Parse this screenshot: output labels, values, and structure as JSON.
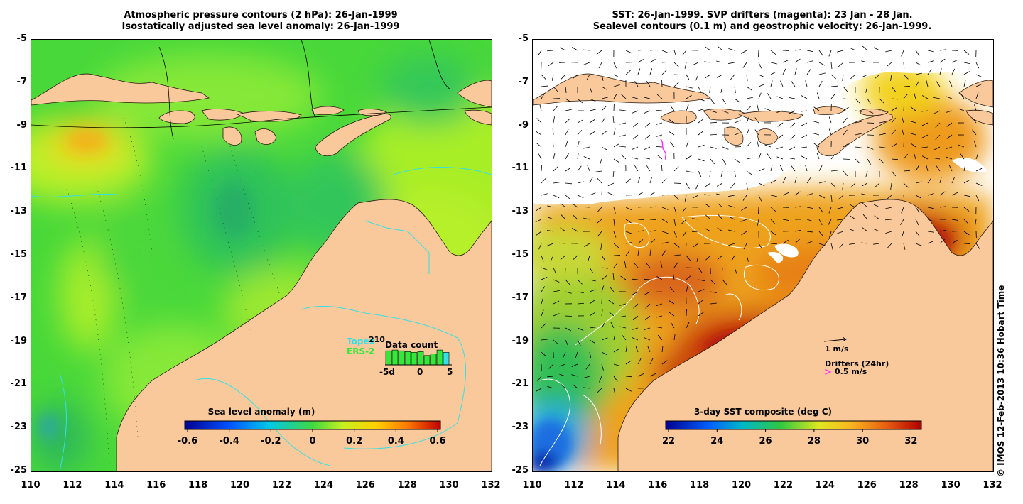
{
  "left_panel": {
    "title_line1": "Atmospheric pressure contours (2 hPa): 26-Jan-1999",
    "title_line2": "Isostatically adjusted sea level anomaly: 26-Jan-1999",
    "colorbar_label": "Sea level anomaly (m)",
    "colorbar_ticks": [
      "-0.6",
      "-0.4",
      "-0.2",
      "0",
      "0.2",
      "0.4",
      "0.6"
    ],
    "inset": {
      "label_topex": "Topex",
      "label_ers2": "ERS-2",
      "label_count": "Data count",
      "count_value": "210",
      "axis_ticks": [
        "-5d",
        "0",
        "5"
      ],
      "bars": [
        0.9,
        0.95,
        0.9,
        0.85,
        0.8,
        0.85,
        0.6,
        0.7,
        0.95,
        0.8
      ]
    }
  },
  "right_panel": {
    "title_line1": "SST: 26-Jan-1999. SVP drifters (magenta): 23 Jan - 28 Jan.",
    "title_line2": "Sealevel contours (0.1 m) and geostrophic velocity: 26-Jan-1999.",
    "colorbar_label": "3-day SST composite (deg C)",
    "colorbar_ticks": [
      "22",
      "24",
      "26",
      "28",
      "30",
      "32"
    ],
    "vector_legend": "1 m/s",
    "drifter_legend": "Drifters (24hr)",
    "drifter_speed": "0.5 m/s"
  },
  "axes": {
    "y_ticks": [
      "-5",
      "-7",
      "-9",
      "-11",
      "-13",
      "-15",
      "-17",
      "-19",
      "-21",
      "-23",
      "-25"
    ],
    "x_ticks": [
      "110",
      "112",
      "114",
      "116",
      "118",
      "120",
      "122",
      "124",
      "126",
      "128",
      "130",
      "132"
    ]
  },
  "credit": "© IMOS 12-Feb-2013 10:36 Hobart Time",
  "colors": {
    "land": "#f9c99b",
    "coast": "#2a1a10",
    "contour_cyan": "#35e0e6",
    "drifter": "#ff30ff"
  }
}
